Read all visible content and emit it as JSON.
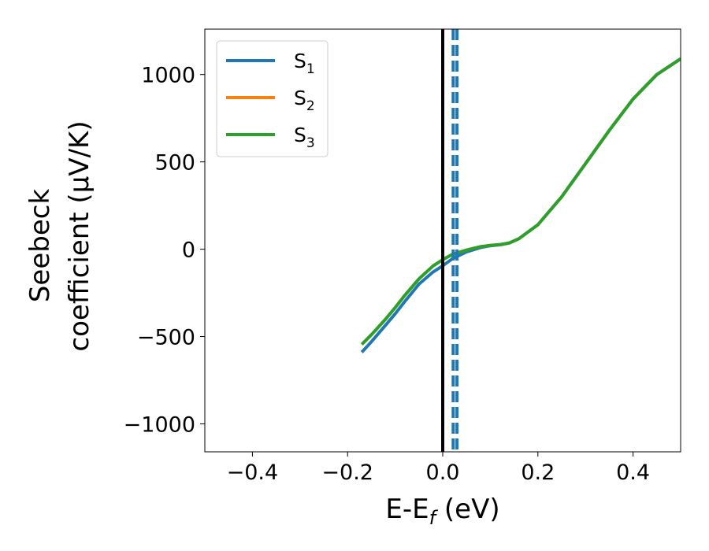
{
  "chart_data": {
    "type": "line",
    "xlabel_main": "E-E",
    "xlabel_sub": "f",
    "xlabel_unit": " (eV)",
    "ylabel_line1": "Seebeck",
    "ylabel_line2": "coefficient  (μV/K)",
    "xlim": [
      -0.5,
      0.5
    ],
    "ylim": [
      -1160,
      1260
    ],
    "xticks": [
      -0.4,
      -0.2,
      0.0,
      0.2,
      0.4
    ],
    "xtick_labels": [
      "−0.4",
      "−0.2",
      "0.0",
      "0.2",
      "0.4"
    ],
    "yticks": [
      -1000,
      -500,
      0,
      500,
      1000
    ],
    "ytick_labels": [
      "−1000",
      "−500",
      "0",
      "500",
      "1000"
    ],
    "grid": false,
    "legend_position": "upper-left",
    "fermi_line": {
      "x": 0.0,
      "color": "#000000"
    },
    "dashed_lines": {
      "x": [
        0.022,
        0.03
      ],
      "color": "#1f77b4"
    },
    "series": [
      {
        "name": "S",
        "sub": "1",
        "color": "#1f77b4",
        "x": [
          -0.17,
          -0.15,
          -0.12,
          -0.1,
          -0.08,
          -0.05,
          -0.02,
          0.0,
          0.02,
          0.05,
          0.08,
          0.1,
          0.12,
          0.14,
          0.16,
          0.2,
          0.25,
          0.3,
          0.35,
          0.4,
          0.45,
          0.5
        ],
        "y": [
          -590,
          -530,
          -435,
          -370,
          -300,
          -200,
          -130,
          -95,
          -55,
          -15,
          10,
          20,
          25,
          35,
          60,
          140,
          300,
          490,
          680,
          860,
          1000,
          1090
        ]
      },
      {
        "name": "S",
        "sub": "2",
        "color": "#ff7f0e",
        "x": [
          -0.17,
          -0.15,
          -0.12,
          -0.1,
          -0.08,
          -0.05,
          -0.02,
          0.0,
          0.02,
          0.05,
          0.08,
          0.1,
          0.12,
          0.14,
          0.16,
          0.2,
          0.25,
          0.3,
          0.35,
          0.4,
          0.45,
          0.5
        ],
        "y": [
          -545,
          -490,
          -400,
          -335,
          -265,
          -170,
          -95,
          -60,
          -30,
          -5,
          15,
          22,
          26,
          36,
          60,
          140,
          300,
          490,
          680,
          860,
          1000,
          1090
        ]
      },
      {
        "name": "S",
        "sub": "3",
        "color": "#2ca02c",
        "x": [
          -0.17,
          -0.15,
          -0.12,
          -0.1,
          -0.08,
          -0.05,
          -0.02,
          0.0,
          0.02,
          0.05,
          0.08,
          0.1,
          0.12,
          0.14,
          0.16,
          0.2,
          0.25,
          0.3,
          0.35,
          0.4,
          0.45,
          0.5
        ],
        "y": [
          -545,
          -490,
          -400,
          -335,
          -265,
          -170,
          -95,
          -60,
          -30,
          -5,
          15,
          22,
          26,
          36,
          60,
          140,
          300,
          490,
          680,
          860,
          1000,
          1090
        ]
      }
    ]
  }
}
